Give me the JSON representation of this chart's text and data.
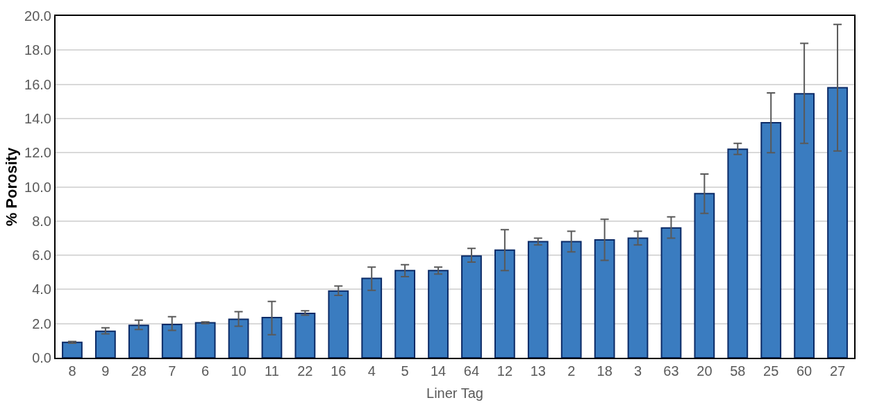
{
  "chart_data": {
    "type": "bar",
    "xlabel": "Liner Tag",
    "ylabel": "% Porosity",
    "categories": [
      "8",
      "9",
      "28",
      "7",
      "6",
      "10",
      "11",
      "22",
      "16",
      "4",
      "5",
      "14",
      "64",
      "12",
      "13",
      "2",
      "18",
      "3",
      "63",
      "20",
      "58",
      "25",
      "60",
      "27"
    ],
    "values": [
      0.9,
      1.55,
      1.9,
      1.95,
      2.05,
      2.25,
      2.35,
      2.6,
      3.9,
      4.65,
      5.1,
      5.1,
      5.95,
      6.3,
      6.8,
      6.8,
      6.9,
      7.0,
      7.6,
      9.6,
      12.2,
      13.75,
      15.45,
      15.8
    ],
    "errors": [
      [
        0.85,
        0.95
      ],
      [
        1.4,
        1.75
      ],
      [
        1.65,
        2.2
      ],
      [
        1.6,
        2.4
      ],
      [
        2.0,
        2.1
      ],
      [
        1.85,
        2.7
      ],
      [
        1.35,
        3.3
      ],
      [
        2.5,
        2.75
      ],
      [
        3.65,
        4.2
      ],
      [
        3.95,
        5.3
      ],
      [
        4.75,
        5.45
      ],
      [
        4.9,
        5.3
      ],
      [
        5.6,
        6.4
      ],
      [
        5.1,
        7.5
      ],
      [
        6.6,
        7.0
      ],
      [
        6.2,
        7.4
      ],
      [
        5.7,
        8.1
      ],
      [
        6.6,
        7.4
      ],
      [
        7.0,
        8.25
      ],
      [
        8.45,
        10.75
      ],
      [
        11.9,
        12.55
      ],
      [
        12.0,
        15.5
      ],
      [
        12.55,
        18.4
      ],
      [
        12.1,
        19.5
      ]
    ],
    "color": "#3a7cc0",
    "ylim": [
      0,
      20
    ],
    "yticks": [
      {
        "value": 0,
        "label": "0.0"
      },
      {
        "value": 2,
        "label": "2.0"
      },
      {
        "value": 4,
        "label": "4.0"
      },
      {
        "value": 6,
        "label": "6.0"
      },
      {
        "value": 8,
        "label": "8.0"
      },
      {
        "value": 10,
        "label": "10.0"
      },
      {
        "value": 12,
        "label": "12.0"
      },
      {
        "value": 14,
        "label": "14.0"
      },
      {
        "value": 16,
        "label": "16.0"
      },
      {
        "value": 18,
        "label": "18.0"
      },
      {
        "value": 20,
        "label": "20.0"
      }
    ],
    "grid": "y"
  }
}
